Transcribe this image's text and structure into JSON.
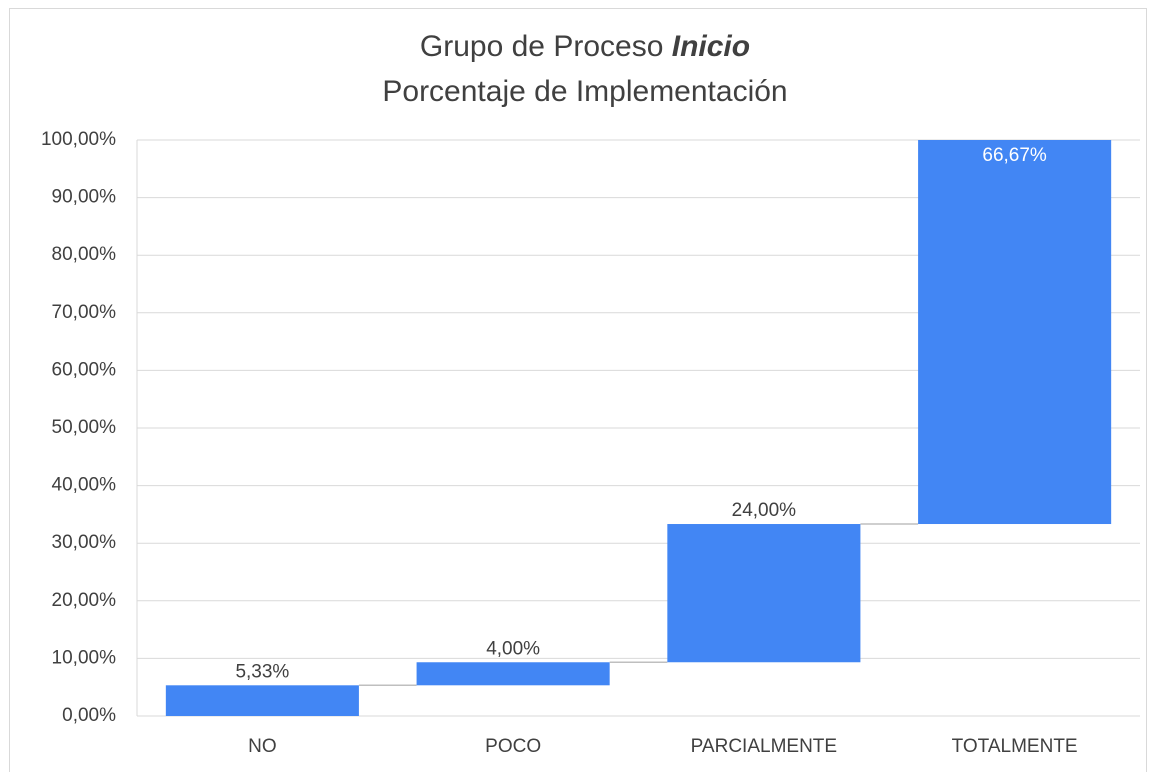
{
  "chart_data": {
    "type": "waterfall",
    "title": "Grupo de Proceso",
    "title_emphasis": "Inicio",
    "subtitle": "Porcentaje de Implementación",
    "categories": [
      "NO",
      "POCO",
      "PARCIALMENTE",
      "TOTALMENTE"
    ],
    "values": [
      5.33,
      4.0,
      24.0,
      66.67
    ],
    "value_labels": [
      "5,33%",
      "4,00%",
      "24,00%",
      "66,67%"
    ],
    "color": "#4286f4",
    "ylim": [
      0,
      100
    ],
    "yticks": [
      {
        "value": 0,
        "label": "0,00%"
      },
      {
        "value": 10,
        "label": "10,00%"
      },
      {
        "value": 20,
        "label": "20,00%"
      },
      {
        "value": 30,
        "label": "30,00%"
      },
      {
        "value": 40,
        "label": "40,00%"
      },
      {
        "value": 50,
        "label": "50,00%"
      },
      {
        "value": 60,
        "label": "60,00%"
      },
      {
        "value": 70,
        "label": "70,00%"
      },
      {
        "value": 80,
        "label": "80,00%"
      },
      {
        "value": 90,
        "label": "90,00%"
      },
      {
        "value": 100,
        "label": "100,00%"
      }
    ],
    "grid": true
  }
}
